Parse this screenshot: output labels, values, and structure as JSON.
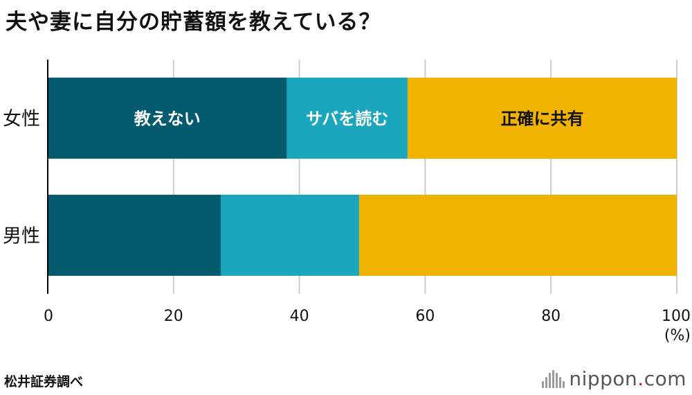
{
  "title": "夫や妻に自分の貯蓄額を教えている？",
  "source": "松井証券調べ",
  "logo": {
    "name": "nippon",
    "dot": ".",
    "tld": "com"
  },
  "colors": {
    "teal_dark": "#045b6e",
    "teal_light": "#1ba6be",
    "gold": "#f0b400",
    "grid": "#cccccc",
    "axis": "#000000"
  },
  "chart_data": {
    "type": "bar",
    "orientation": "horizontal",
    "stacked": true,
    "categories": [
      "女性",
      "男性"
    ],
    "series": [
      {
        "name": "教えない",
        "values": [
          38,
          27.5
        ],
        "color": "#045b6e",
        "label_color": "#ffffff"
      },
      {
        "name": "サバを読む",
        "values": [
          19.2,
          22
        ],
        "color": "#1ba6be",
        "label_color": "#ffffff"
      },
      {
        "name": "正確に共有",
        "values": [
          42.8,
          50.5
        ],
        "color": "#f0b400",
        "label_color": "#111111"
      }
    ],
    "labeled_category": "女性",
    "x_ticks": [
      0,
      20,
      40,
      60,
      80,
      100
    ],
    "xlim": [
      0,
      100
    ],
    "x_unit": "(%)",
    "grid": true
  }
}
